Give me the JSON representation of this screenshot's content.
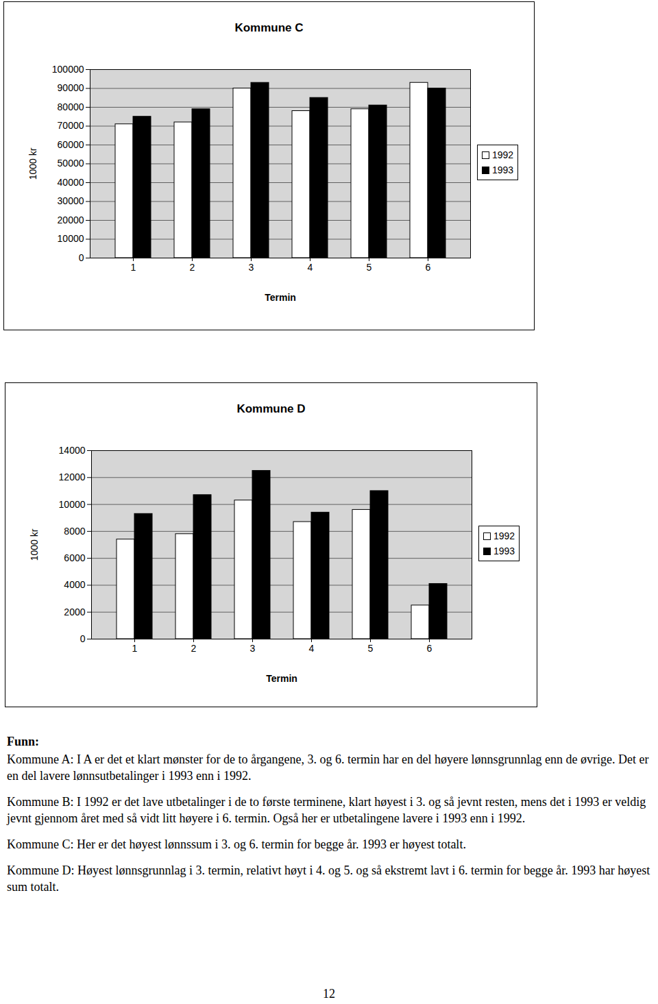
{
  "chart_data": [
    {
      "type": "bar",
      "title": "Kommune C",
      "x_label": "Termin",
      "y_label": "1000 kr",
      "categories": [
        1,
        2,
        3,
        4,
        5,
        6
      ],
      "series": [
        {
          "name": "1992",
          "color": "#ffffff",
          "values": [
            71000,
            72000,
            90000,
            78000,
            79000,
            93000
          ]
        },
        {
          "name": "1993",
          "color": "#000000",
          "values": [
            75000,
            79000,
            93000,
            85000,
            81000,
            90000
          ]
        }
      ],
      "ylim": [
        0,
        100000
      ],
      "yticks": [
        0,
        10000,
        20000,
        30000,
        40000,
        50000,
        60000,
        70000,
        80000,
        90000,
        100000
      ],
      "grid": true,
      "legend": "right"
    },
    {
      "type": "bar",
      "title": "Kommune D",
      "x_label": "Termin",
      "y_label": "1000 kr",
      "categories": [
        1,
        2,
        3,
        4,
        5,
        6
      ],
      "series": [
        {
          "name": "1992",
          "color": "#ffffff",
          "values": [
            7400,
            7800,
            10300,
            8700,
            9600,
            2500
          ]
        },
        {
          "name": "1993",
          "color": "#000000",
          "values": [
            9300,
            10700,
            12500,
            9400,
            11000,
            4100
          ]
        }
      ],
      "ylim": [
        0,
        14000
      ],
      "yticks": [
        0,
        2000,
        4000,
        6000,
        8000,
        10000,
        12000,
        14000
      ],
      "grid": true,
      "legend": "right"
    }
  ],
  "text": {
    "heading": "Funn:",
    "paragraphs": [
      "Kommune A: I A er det et klart mønster for de to årgangene, 3. og 6. termin har en del høyere lønnsgrunnlag enn de øvrige. Det er en del lavere lønnsutbetalinger i 1993 enn i 1992.",
      "Kommune B: I 1992 er det lave utbetalinger i de to første terminene, klart høyest i 3. og så jevnt resten, mens det i 1993 er veldig jevnt gjennom året med så vidt litt høyere i 6. termin. Også her er utbetalingene lavere i 1993 enn i 1992.",
      "Kommune C: Her er det høyest lønnssum i 3. og 6. termin for begge år. 1993 er høyest totalt.",
      "Kommune D: Høyest lønnsgrunnlag i 3. termin, relativt høyt i 4. og 5. og så ekstremt lavt i 6. termin for begge år. 1993 har høyest sum totalt."
    ],
    "page_number": "12"
  }
}
